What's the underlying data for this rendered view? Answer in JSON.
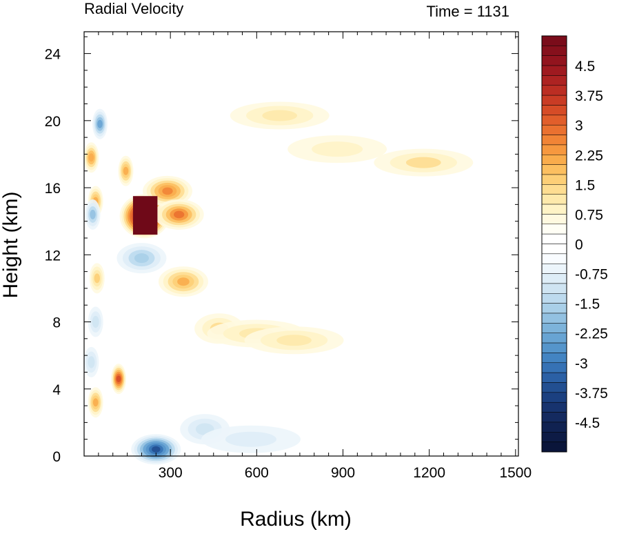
{
  "chart_data": {
    "type": "heatmap",
    "title_left": "Radial Velocity",
    "title_right": "Time = 1131",
    "xlabel": "Radius (km)",
    "ylabel": "Height (km)",
    "xlim": [
      0,
      1510
    ],
    "ylim": [
      0,
      25.3
    ],
    "x_ticks": [
      "300",
      "600",
      "900",
      "1200",
      "1500"
    ],
    "x_tick_values": [
      300,
      600,
      900,
      1200,
      1500
    ],
    "y_ticks": [
      "0",
      "4",
      "8",
      "12",
      "16",
      "20",
      "24"
    ],
    "y_tick_values": [
      0,
      4,
      8,
      12,
      16,
      20,
      24
    ],
    "colorbar": {
      "labels": [
        "4.5",
        "3.75",
        "3",
        "2.25",
        "1.5",
        "0.75",
        "0",
        "-0.75",
        "-1.5",
        "-2.25",
        "-3",
        "-3.75",
        "-4.5"
      ],
      "label_values": [
        4.5,
        3.75,
        3,
        2.25,
        1.5,
        0.75,
        0,
        -0.75,
        -1.5,
        -2.25,
        -3,
        -3.75,
        -4.5
      ],
      "min": -5.25,
      "max": 5.25,
      "step": 0.25
    },
    "features": [
      {
        "r": 210,
        "z": 14.3,
        "v": 5.5
      },
      {
        "r": 290,
        "z": 15.8,
        "v": 2.6
      },
      {
        "r": 330,
        "z": 14.4,
        "v": 2.8
      },
      {
        "r": 345,
        "z": 10.4,
        "v": 2.0
      },
      {
        "r": 470,
        "z": 7.6,
        "v": 1.3
      },
      {
        "r": 600,
        "z": 7.3,
        "v": 1.1
      },
      {
        "r": 730,
        "z": 6.9,
        "v": 1.2
      },
      {
        "r": 1180,
        "z": 17.5,
        "v": 1.3
      },
      {
        "r": 680,
        "z": 20.3,
        "v": 1.2
      },
      {
        "r": 880,
        "z": 18.3,
        "v": 0.9
      },
      {
        "r": 25,
        "z": 17.8,
        "v": 2.2
      },
      {
        "r": 40,
        "z": 15.2,
        "v": 2.0
      },
      {
        "r": 45,
        "z": 10.6,
        "v": 1.6
      },
      {
        "r": 40,
        "z": 3.2,
        "v": 2.1
      },
      {
        "r": 120,
        "z": 4.6,
        "v": 3.4
      },
      {
        "r": 145,
        "z": 17.0,
        "v": 2.0
      },
      {
        "r": 30,
        "z": 14.4,
        "v": -1.8
      },
      {
        "r": 55,
        "z": 19.8,
        "v": -2.4
      },
      {
        "r": 40,
        "z": 8.0,
        "v": -1.0
      },
      {
        "r": 25,
        "z": 5.6,
        "v": -1.2
      },
      {
        "r": 200,
        "z": 11.8,
        "v": -1.7
      },
      {
        "r": 250,
        "z": 0.4,
        "v": -3.6
      },
      {
        "r": 420,
        "z": 1.6,
        "v": -1.0
      },
      {
        "r": 580,
        "z": 1.0,
        "v": -0.9
      }
    ]
  }
}
